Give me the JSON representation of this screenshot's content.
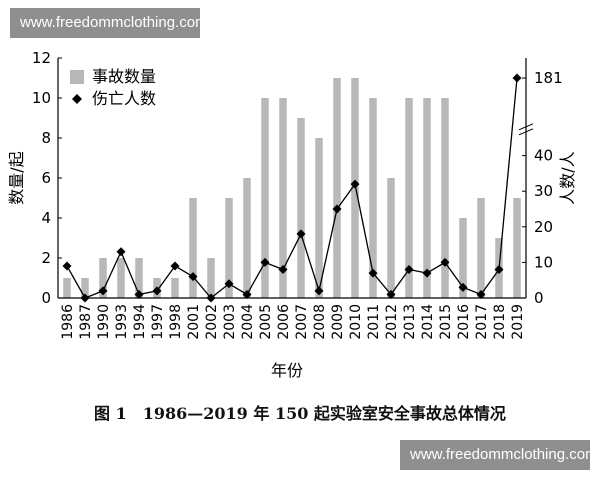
{
  "watermarks": {
    "top": "www.freedommclothing.com",
    "bottom": "www.freedommclothing.com"
  },
  "caption": "图 1　1986—2019 年 150 起实验室安全事故总体情况",
  "chart_data": {
    "type": "bar",
    "categories": [
      "1986",
      "1987",
      "1990",
      "1993",
      "1994",
      "1997",
      "1998",
      "2001",
      "2002",
      "2003",
      "2004",
      "2005",
      "2006",
      "2007",
      "2008",
      "2009",
      "2010",
      "2011",
      "2012",
      "2013",
      "2014",
      "2015",
      "2016",
      "2017",
      "2018",
      "2019"
    ],
    "xlabel": "年份",
    "ylabel": "数量/起",
    "y2label": "人数/人",
    "ylim": [
      0,
      12
    ],
    "yticks": [
      0,
      2,
      4,
      6,
      8,
      10,
      12
    ],
    "y2ticks": [
      "0",
      "10",
      "20",
      "30",
      "40",
      "181"
    ],
    "y2lim": [
      0,
      50
    ],
    "legend_position": "top-left",
    "series": [
      {
        "name": "事故数量",
        "type": "bar",
        "axis": "left",
        "color": "#b8b8b8",
        "values": [
          1,
          1,
          2,
          2,
          2,
          1,
          1,
          5,
          2,
          5,
          6,
          10,
          10,
          9,
          8,
          11,
          11,
          10,
          6,
          10,
          10,
          10,
          4,
          5,
          3,
          5
        ]
      },
      {
        "name": "伤亡人数",
        "type": "line",
        "axis": "right",
        "color": "#000000",
        "values": [
          9,
          0,
          2,
          13,
          1,
          2,
          9,
          6,
          0,
          4,
          1,
          10,
          8,
          18,
          2,
          25,
          32,
          7,
          1,
          8,
          7,
          10,
          3,
          1,
          8,
          181
        ]
      }
    ],
    "axis_break": {
      "axis": "right",
      "between": "40",
      "and": "181"
    }
  }
}
